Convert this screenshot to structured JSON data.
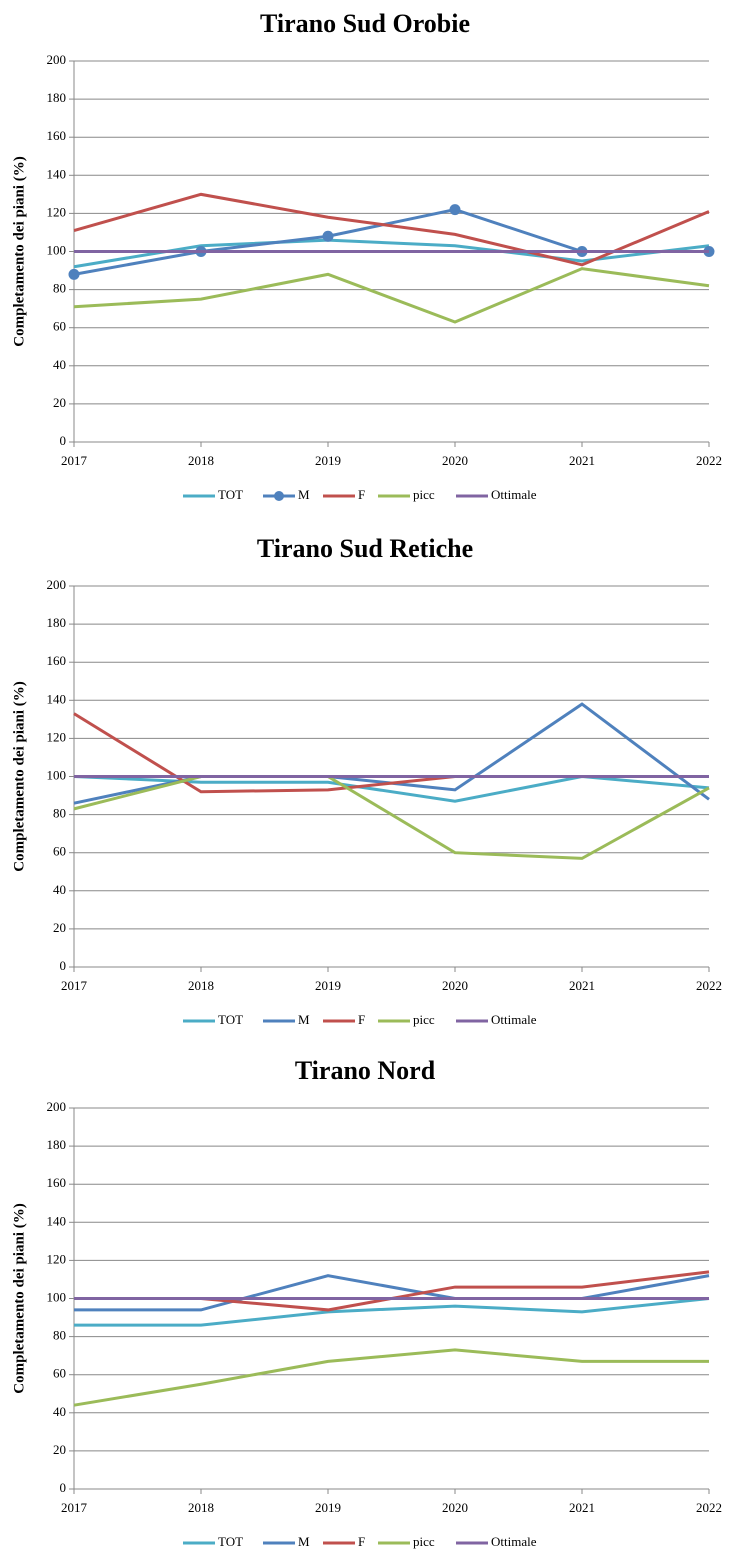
{
  "chart_data": [
    {
      "type": "line",
      "title": "Tirano Sud Orobie",
      "ylabel": "Completamento dei piani (%)",
      "categories": [
        "2017",
        "2018",
        "2019",
        "2020",
        "2021",
        "2022"
      ],
      "ylim": [
        0,
        200
      ],
      "yticks": [
        0,
        20,
        40,
        60,
        80,
        100,
        120,
        140,
        160,
        180,
        200
      ],
      "grid": true,
      "series": [
        {
          "name": "TOT",
          "color": "#4bacc6",
          "values": [
            92,
            103,
            106,
            103,
            95,
            103
          ]
        },
        {
          "name": "M",
          "color": "#4f81bd",
          "marker": "circle",
          "values": [
            88,
            100,
            108,
            122,
            100,
            100
          ]
        },
        {
          "name": "F",
          "color": "#c0504d",
          "values": [
            111,
            130,
            118,
            109,
            93,
            121
          ]
        },
        {
          "name": "picc",
          "color": "#9bbb59",
          "values": [
            71,
            75,
            88,
            63,
            91,
            82
          ]
        },
        {
          "name": "Ottimale",
          "color": "#8064a2",
          "values": [
            100,
            100,
            100,
            100,
            100,
            100
          ]
        }
      ]
    },
    {
      "type": "line",
      "title": "Tirano Sud Retiche",
      "ylabel": "Completamento dei piani (%)",
      "categories": [
        "2017",
        "2018",
        "2019",
        "2020",
        "2021",
        "2022"
      ],
      "ylim": [
        0,
        200
      ],
      "yticks": [
        0,
        20,
        40,
        60,
        80,
        100,
        120,
        140,
        160,
        180,
        200
      ],
      "grid": true,
      "series": [
        {
          "name": "TOT",
          "color": "#4bacc6",
          "values": [
            100,
            97,
            97,
            87,
            100,
            94
          ]
        },
        {
          "name": "M",
          "color": "#4f81bd",
          "values": [
            86,
            100,
            100,
            93,
            138,
            88
          ]
        },
        {
          "name": "F",
          "color": "#c0504d",
          "values": [
            133,
            92,
            93,
            100,
            100,
            100
          ]
        },
        {
          "name": "picc",
          "color": "#9bbb59",
          "values": [
            83,
            100,
            100,
            60,
            57,
            94
          ]
        },
        {
          "name": "Ottimale",
          "color": "#8064a2",
          "values": [
            100,
            100,
            100,
            100,
            100,
            100
          ]
        }
      ]
    },
    {
      "type": "line",
      "title": "Tirano Nord",
      "ylabel": "Completamento dei piani (%)",
      "categories": [
        "2017",
        "2018",
        "2019",
        "2020",
        "2021",
        "2022"
      ],
      "ylim": [
        0,
        200
      ],
      "yticks": [
        0,
        20,
        40,
        60,
        80,
        100,
        120,
        140,
        160,
        180,
        200
      ],
      "grid": true,
      "series": [
        {
          "name": "TOT",
          "color": "#4bacc6",
          "values": [
            86,
            86,
            93,
            96,
            93,
            100
          ]
        },
        {
          "name": "M",
          "color": "#4f81bd",
          "values": [
            94,
            94,
            112,
            100,
            100,
            112
          ]
        },
        {
          "name": "F",
          "color": "#c0504d",
          "values": [
            100,
            100,
            94,
            106,
            106,
            114
          ]
        },
        {
          "name": "picc",
          "color": "#9bbb59",
          "values": [
            44,
            55,
            67,
            73,
            67,
            67
          ]
        },
        {
          "name": "Ottimale",
          "color": "#8064a2",
          "values": [
            100,
            100,
            100,
            100,
            100,
            100
          ]
        }
      ]
    }
  ]
}
